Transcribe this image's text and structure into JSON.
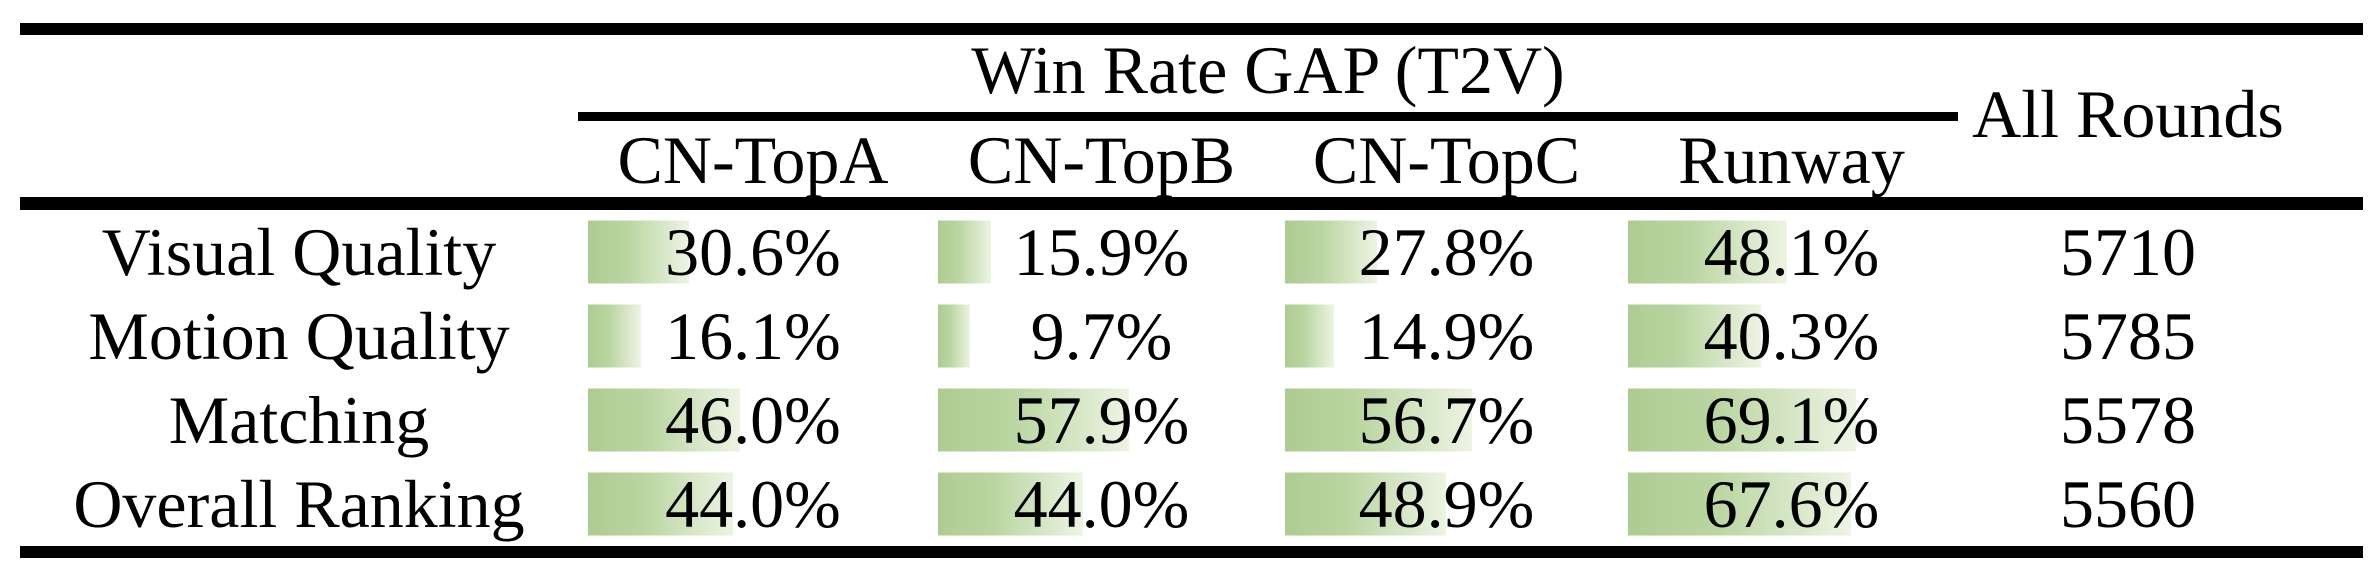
{
  "table": {
    "title": "Win Rate GAP (T2V)",
    "all_rounds_header": "All Rounds",
    "columns": [
      "CN-TopA",
      "CN-TopB",
      "CN-TopC",
      "Runway"
    ],
    "rows": [
      {
        "label": "Visual Quality",
        "values": [
          30.6,
          15.9,
          27.8,
          48.1
        ],
        "labels": [
          "30.6%",
          "15.9%",
          "27.8%",
          "48.1%"
        ],
        "all_rounds": "5710"
      },
      {
        "label": "Motion Quality",
        "values": [
          16.1,
          9.7,
          14.9,
          40.3
        ],
        "labels": [
          "16.1%",
          "9.7%",
          "14.9%",
          "40.3%"
        ],
        "all_rounds": "5785"
      },
      {
        "label": "Matching",
        "values": [
          46.0,
          57.9,
          56.7,
          69.1
        ],
        "labels": [
          "46.0%",
          "57.9%",
          "56.7%",
          "69.1%"
        ],
        "all_rounds": "5578"
      },
      {
        "label": "Overall Ranking",
        "values": [
          44.0,
          44.0,
          48.9,
          67.6
        ],
        "labels": [
          "44.0%",
          "44.0%",
          "48.9%",
          "67.6%"
        ],
        "all_rounds": "5560"
      }
    ],
    "colors": {
      "bar_start": "#adcc91",
      "bar_mid": "#b9d5a0",
      "bar_end": "#edf4e3",
      "rule": "#000000",
      "text": "#000000",
      "background": "#ffffff"
    }
  },
  "chart_data": {
    "type": "table",
    "title": "Win Rate GAP (T2V)",
    "columns": [
      "",
      "CN-TopA",
      "CN-TopB",
      "CN-TopC",
      "Runway",
      "All Rounds"
    ],
    "rows": [
      [
        "Visual Quality",
        "30.6%",
        "15.9%",
        "27.8%",
        "48.1%",
        "5710"
      ],
      [
        "Motion Quality",
        "16.1%",
        "9.7%",
        "14.9%",
        "40.3%",
        "5785"
      ],
      [
        "Matching",
        "46.0%",
        "57.9%",
        "56.7%",
        "69.1%",
        "5578"
      ],
      [
        "Overall Ranking",
        "44.0%",
        "44.0%",
        "48.9%",
        "67.6%",
        "5560"
      ]
    ],
    "notes": "Cells of the four Win Rate GAP columns contain left-aligned green gradient data bars whose width is proportional to the percentage (scale ~3.3px per percent, 100% ~ 330px)."
  }
}
